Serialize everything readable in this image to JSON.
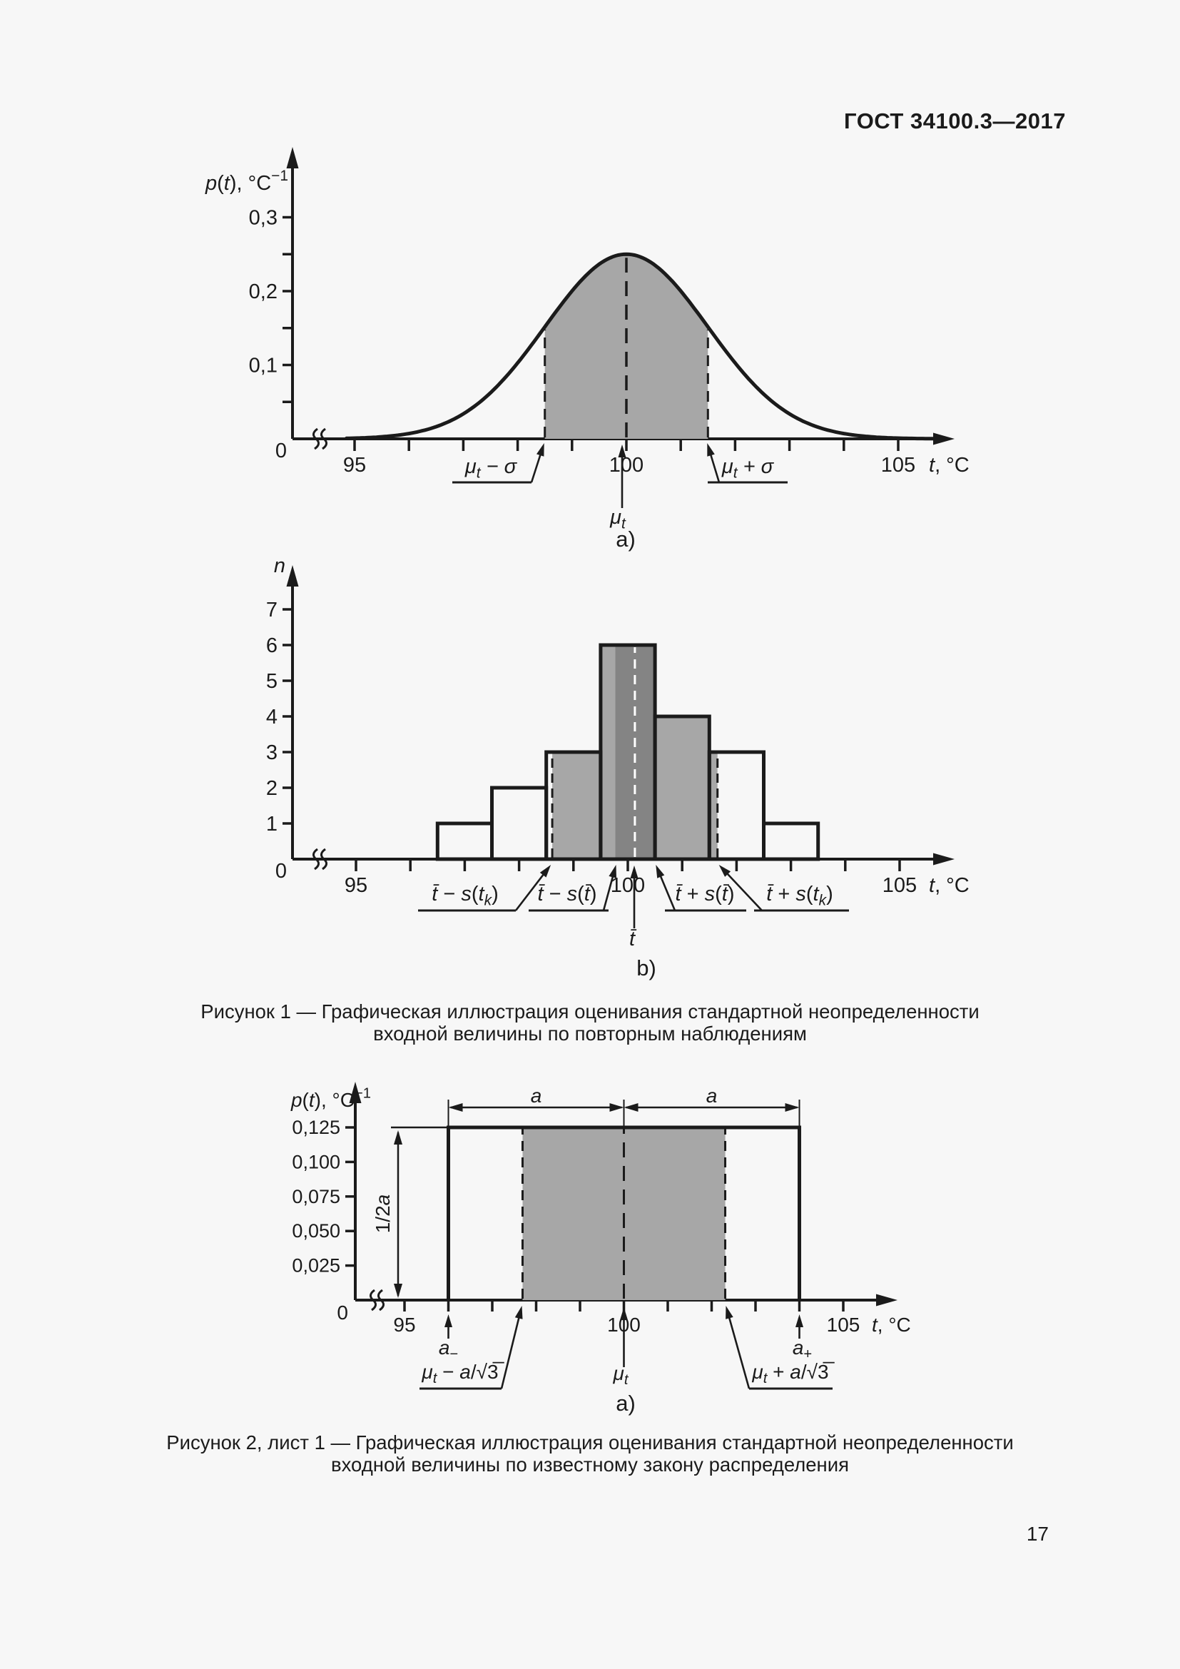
{
  "style": {
    "bg": "#f7f7f7",
    "ink": "#1b1b1b",
    "gray": "#a7a7a7",
    "gray_dark": "#848484",
    "white_dash": "#ffffff"
  },
  "page": {
    "header": "ГОСТ 34100.3—2017",
    "page_number": "17"
  },
  "captions": {
    "fig1_line1": "Рисунок 1 — Графическая иллюстрация оценивания стандартной неопределенности",
    "fig1_line2": "входной величины по повторным наблюдениям",
    "fig2_line1": "Рисунок 2, лист 1 — Графическая иллюстрация оценивания стандартной неопределенности",
    "fig2_line2": "входной величины по известному закону распределения"
  },
  "chart_data": [
    {
      "id": "fig1a-normal-pdf",
      "type": "area",
      "title": "",
      "xlabel": "t, °C",
      "ylabel": "p(t), °C⁻¹",
      "sublabel": "a)",
      "origin_label": "0",
      "xlim": [
        94,
        106
      ],
      "ylim": [
        0,
        0.32
      ],
      "mean": 100,
      "sigma": 1.5,
      "peak": 0.25,
      "x_domain": [
        94.85,
        105.65
      ],
      "x_tick_values": [
        95,
        96,
        97,
        98,
        99,
        100,
        101,
        102,
        103,
        104,
        105
      ],
      "x_tick_labels": [
        {
          "v": 95,
          "t": "95"
        },
        {
          "v": 100,
          "t": "100"
        },
        {
          "v": 105,
          "t": "105"
        }
      ],
      "y_tick_values": [
        0.05,
        0.1,
        0.15,
        0.2,
        0.25,
        0.3
      ],
      "y_tick_labels": [
        {
          "v": 0.1,
          "t": "0,1"
        },
        {
          "v": 0.2,
          "t": "0,2"
        },
        {
          "v": 0.3,
          "t": "0,3"
        }
      ],
      "ylabel_parts": [
        {
          "t": "p",
          "it": true
        },
        {
          "t": "("
        },
        {
          "t": "t",
          "it": true
        },
        {
          "t": "), °C"
        },
        {
          "t": "−1",
          "sup": true
        }
      ],
      "xlabel_parts": [
        {
          "t": "t",
          "it": true
        },
        {
          "t": ", °C"
        }
      ],
      "annotations": {
        "mu_minus_sigma": [
          {
            "t": "μ",
            "it": true
          },
          {
            "t": "t",
            "it": true,
            "sub": true
          },
          {
            "t": " − σ",
            "it": true
          }
        ],
        "mu_plus_sigma": [
          {
            "t": "μ",
            "it": true
          },
          {
            "t": "t",
            "it": true,
            "sub": true
          },
          {
            "t": " + σ",
            "it": true
          }
        ],
        "mu": [
          {
            "t": "μ",
            "it": true
          },
          {
            "t": "t",
            "it": true,
            "sub": true
          }
        ]
      }
    },
    {
      "id": "fig1b-histogram",
      "type": "bar",
      "title": "",
      "xlabel": "t, °C",
      "ylabel": "n",
      "sublabel": "b)",
      "origin_label": "0",
      "xlim": [
        94,
        106
      ],
      "ylim": [
        0,
        7.8
      ],
      "bin_centers": [
        97,
        98,
        99,
        100,
        101,
        102,
        103
      ],
      "counts": [
        1,
        2,
        3,
        6,
        4,
        3,
        1
      ],
      "t_mean": 100.13,
      "s_tk": 1.52,
      "s_t_mean": 0.36,
      "x_tick_values": [
        95,
        96,
        97,
        98,
        99,
        100,
        101,
        102,
        103,
        104,
        105
      ],
      "x_tick_labels": [
        {
          "v": 95,
          "t": "95"
        },
        {
          "v": 100,
          "t": "100"
        },
        {
          "v": 105,
          "t": "105"
        }
      ],
      "y_tick_values": [
        1,
        2,
        3,
        4,
        5,
        6,
        7
      ],
      "y_tick_labels": [
        {
          "v": 1,
          "t": "1"
        },
        {
          "v": 2,
          "t": "2"
        },
        {
          "v": 3,
          "t": "3"
        },
        {
          "v": 4,
          "t": "4"
        },
        {
          "v": 5,
          "t": "5"
        },
        {
          "v": 6,
          "t": "6"
        },
        {
          "v": 7,
          "t": "7"
        }
      ],
      "ylabel_parts": [
        {
          "t": "n",
          "it": true
        }
      ],
      "xlabel_parts": [
        {
          "t": "t",
          "it": true
        },
        {
          "t": ", °C"
        }
      ],
      "annotations": {
        "t_minus_stk": [
          {
            "t": "t̄",
            "it": true
          },
          {
            "t": " − "
          },
          {
            "t": "s",
            "it": true
          },
          {
            "t": "("
          },
          {
            "t": "t",
            "it": true
          },
          {
            "t": "k",
            "it": true,
            "sub": true
          },
          {
            "t": ")"
          }
        ],
        "t_minus_st": [
          {
            "t": "t̄",
            "it": true
          },
          {
            "t": " − "
          },
          {
            "t": "s",
            "it": true
          },
          {
            "t": "("
          },
          {
            "t": "t̄",
            "it": true
          },
          {
            "t": ")"
          }
        ],
        "t_plus_st": [
          {
            "t": "t̄",
            "it": true
          },
          {
            "t": " + "
          },
          {
            "t": "s",
            "it": true
          },
          {
            "t": "("
          },
          {
            "t": "t̄",
            "it": true
          },
          {
            "t": ")"
          }
        ],
        "t_plus_stk": [
          {
            "t": "t̄",
            "it": true
          },
          {
            "t": " + "
          },
          {
            "t": "s",
            "it": true
          },
          {
            "t": "("
          },
          {
            "t": "t",
            "it": true
          },
          {
            "t": "k",
            "it": true,
            "sub": true
          },
          {
            "t": ")"
          }
        ],
        "t_bar": [
          {
            "t": "t̄",
            "it": true
          }
        ]
      }
    },
    {
      "id": "fig2a-uniform-pdf",
      "type": "area",
      "title": "",
      "xlabel": "t, °C",
      "ylabel": "p(t), °C⁻¹",
      "sublabel": "a)",
      "origin_label": "0",
      "xlim": [
        94,
        106
      ],
      "ylim": [
        0,
        0.14
      ],
      "mean": 100,
      "a_minus": 96,
      "a_plus": 104,
      "pdf_height": 0.125,
      "x_tick_values": [
        95,
        96,
        97,
        98,
        99,
        100,
        101,
        102,
        103,
        104,
        105
      ],
      "x_tick_labels": [
        {
          "v": 95,
          "t": "95"
        },
        {
          "v": 100,
          "t": "100"
        },
        {
          "v": 105,
          "t": "105"
        }
      ],
      "y_tick_values": [
        0.025,
        0.05,
        0.075,
        0.1,
        0.125
      ],
      "y_tick_labels": [
        {
          "v": 0.025,
          "t": "0,025"
        },
        {
          "v": 0.05,
          "t": "0,050"
        },
        {
          "v": 0.075,
          "t": "0,075"
        },
        {
          "v": 0.1,
          "t": "0,100"
        },
        {
          "v": 0.125,
          "t": "0,125"
        }
      ],
      "ylabel_parts": [
        {
          "t": "p",
          "it": true
        },
        {
          "t": "("
        },
        {
          "t": "t",
          "it": true
        },
        {
          "t": "), °C"
        },
        {
          "t": "−1",
          "sup": true
        }
      ],
      "xlabel_parts": [
        {
          "t": "t",
          "it": true
        },
        {
          "t": ", °C"
        }
      ],
      "annotations": {
        "dim_a": [
          {
            "t": "a",
            "it": true
          }
        ],
        "half_height": [
          {
            "t": "1/2"
          },
          {
            "t": "a",
            "it": true
          }
        ],
        "a_minus": [
          {
            "t": "a",
            "it": true
          },
          {
            "t": "−",
            "sub": true
          }
        ],
        "a_plus": [
          {
            "t": "a",
            "it": true
          },
          {
            "t": "+",
            "sub": true
          }
        ],
        "mu_minus": [
          {
            "t": "μ",
            "it": true
          },
          {
            "t": "t",
            "it": true,
            "sub": true
          },
          {
            "t": " − "
          },
          {
            "t": "a",
            "it": true
          },
          {
            "t": "/√3̅"
          }
        ],
        "mu_plus": [
          {
            "t": "μ",
            "it": true
          },
          {
            "t": "t",
            "it": true,
            "sub": true
          },
          {
            "t": " + "
          },
          {
            "t": "a",
            "it": true
          },
          {
            "t": "/√3̅"
          }
        ],
        "mu": [
          {
            "t": "μ",
            "it": true
          },
          {
            "t": "t",
            "it": true,
            "sub": true
          }
        ]
      }
    }
  ]
}
